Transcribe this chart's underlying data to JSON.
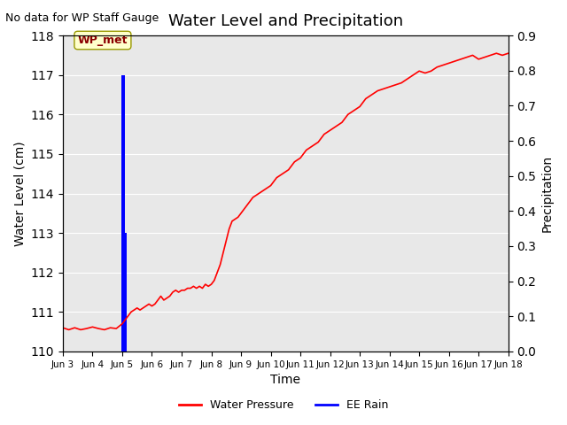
{
  "title": "Water Level and Precipitation",
  "top_left_text": "No data for WP Staff Gauge",
  "xlabel": "Time",
  "ylabel_left": "Water Level (cm)",
  "ylabel_right": "Precipitation",
  "ylim_left": [
    110.0,
    118.0
  ],
  "ylim_right": [
    0.0,
    0.9
  ],
  "yticks_left": [
    110.0,
    111.0,
    112.0,
    113.0,
    114.0,
    115.0,
    116.0,
    117.0,
    118.0
  ],
  "yticks_right": [
    0.0,
    0.1,
    0.2,
    0.3,
    0.4,
    0.5,
    0.6,
    0.7,
    0.8,
    0.9
  ],
  "xtick_labels": [
    "Jun 3",
    "Jun 4",
    "Jun 5",
    "Jun 6",
    "Jun 7",
    "Jun 8",
    "Jun 9",
    "Jun 10",
    "Jun 11",
    "Jun 12",
    "Jun 13",
    "Jun 14",
    "Jun 15",
    "Jun 16",
    "Jun 17",
    "Jun 18"
  ],
  "xlim": [
    0,
    15
  ],
  "background_color": "#e8e8e8",
  "figure_bg": "#ffffff",
  "red_line_color": "#ff0000",
  "blue_bar_color": "#0000ff",
  "annotation_text": "WP_met",
  "annotation_bg": "#ffffcc",
  "annotation_fg": "#8b0000",
  "legend_labels": [
    "Water Pressure",
    "EE Rain"
  ],
  "legend_colors": [
    "#ff0000",
    "#0000ff"
  ],
  "water_pressure_x": [
    0,
    0.2,
    0.4,
    0.6,
    0.8,
    1.0,
    1.2,
    1.4,
    1.6,
    1.8,
    2.0,
    2.1,
    2.2,
    2.3,
    2.4,
    2.5,
    2.6,
    2.7,
    2.8,
    2.9,
    3.0,
    3.1,
    3.2,
    3.3,
    3.4,
    3.5,
    3.6,
    3.7,
    3.8,
    3.9,
    4.0,
    4.1,
    4.2,
    4.3,
    4.4,
    4.5,
    4.6,
    4.7,
    4.8,
    4.9,
    5.0,
    5.1,
    5.2,
    5.3,
    5.4,
    5.5,
    5.6,
    5.7,
    5.8,
    5.9,
    6.0,
    6.2,
    6.4,
    6.6,
    6.8,
    7.0,
    7.2,
    7.4,
    7.6,
    7.8,
    8.0,
    8.2,
    8.4,
    8.6,
    8.8,
    9.0,
    9.2,
    9.4,
    9.6,
    9.8,
    10.0,
    10.2,
    10.4,
    10.6,
    10.8,
    11.0,
    11.2,
    11.4,
    11.6,
    11.8,
    12.0,
    12.2,
    12.4,
    12.6,
    12.8,
    13.0,
    13.2,
    13.4,
    13.6,
    13.8,
    14.0,
    14.2,
    14.4,
    14.6,
    14.8,
    15.0
  ],
  "water_pressure_y": [
    110.6,
    110.55,
    110.6,
    110.55,
    110.58,
    110.62,
    110.58,
    110.55,
    110.6,
    110.58,
    110.7,
    110.8,
    110.9,
    111.0,
    111.05,
    111.1,
    111.05,
    111.1,
    111.15,
    111.2,
    111.15,
    111.2,
    111.3,
    111.4,
    111.3,
    111.35,
    111.4,
    111.5,
    111.55,
    111.5,
    111.55,
    111.55,
    111.6,
    111.6,
    111.65,
    111.6,
    111.65,
    111.6,
    111.7,
    111.65,
    111.7,
    111.8,
    112.0,
    112.2,
    112.5,
    112.8,
    113.1,
    113.3,
    113.35,
    113.4,
    113.5,
    113.7,
    113.9,
    114.0,
    114.1,
    114.2,
    114.4,
    114.5,
    114.6,
    114.8,
    114.9,
    115.1,
    115.2,
    115.3,
    115.5,
    115.6,
    115.7,
    115.8,
    116.0,
    116.1,
    116.2,
    116.4,
    116.5,
    116.6,
    116.65,
    116.7,
    116.75,
    116.8,
    116.9,
    117.0,
    117.1,
    117.05,
    117.1,
    117.2,
    117.25,
    117.3,
    117.35,
    117.4,
    117.45,
    117.5,
    117.4,
    117.45,
    117.5,
    117.55,
    117.5,
    117.55
  ],
  "rain_events": [
    {
      "x": 2.0,
      "height": 7.0
    },
    {
      "x": 2.05,
      "height": 7.0
    },
    {
      "x": 2.1,
      "height": 3.0
    }
  ],
  "rain_bar_width": 0.08
}
